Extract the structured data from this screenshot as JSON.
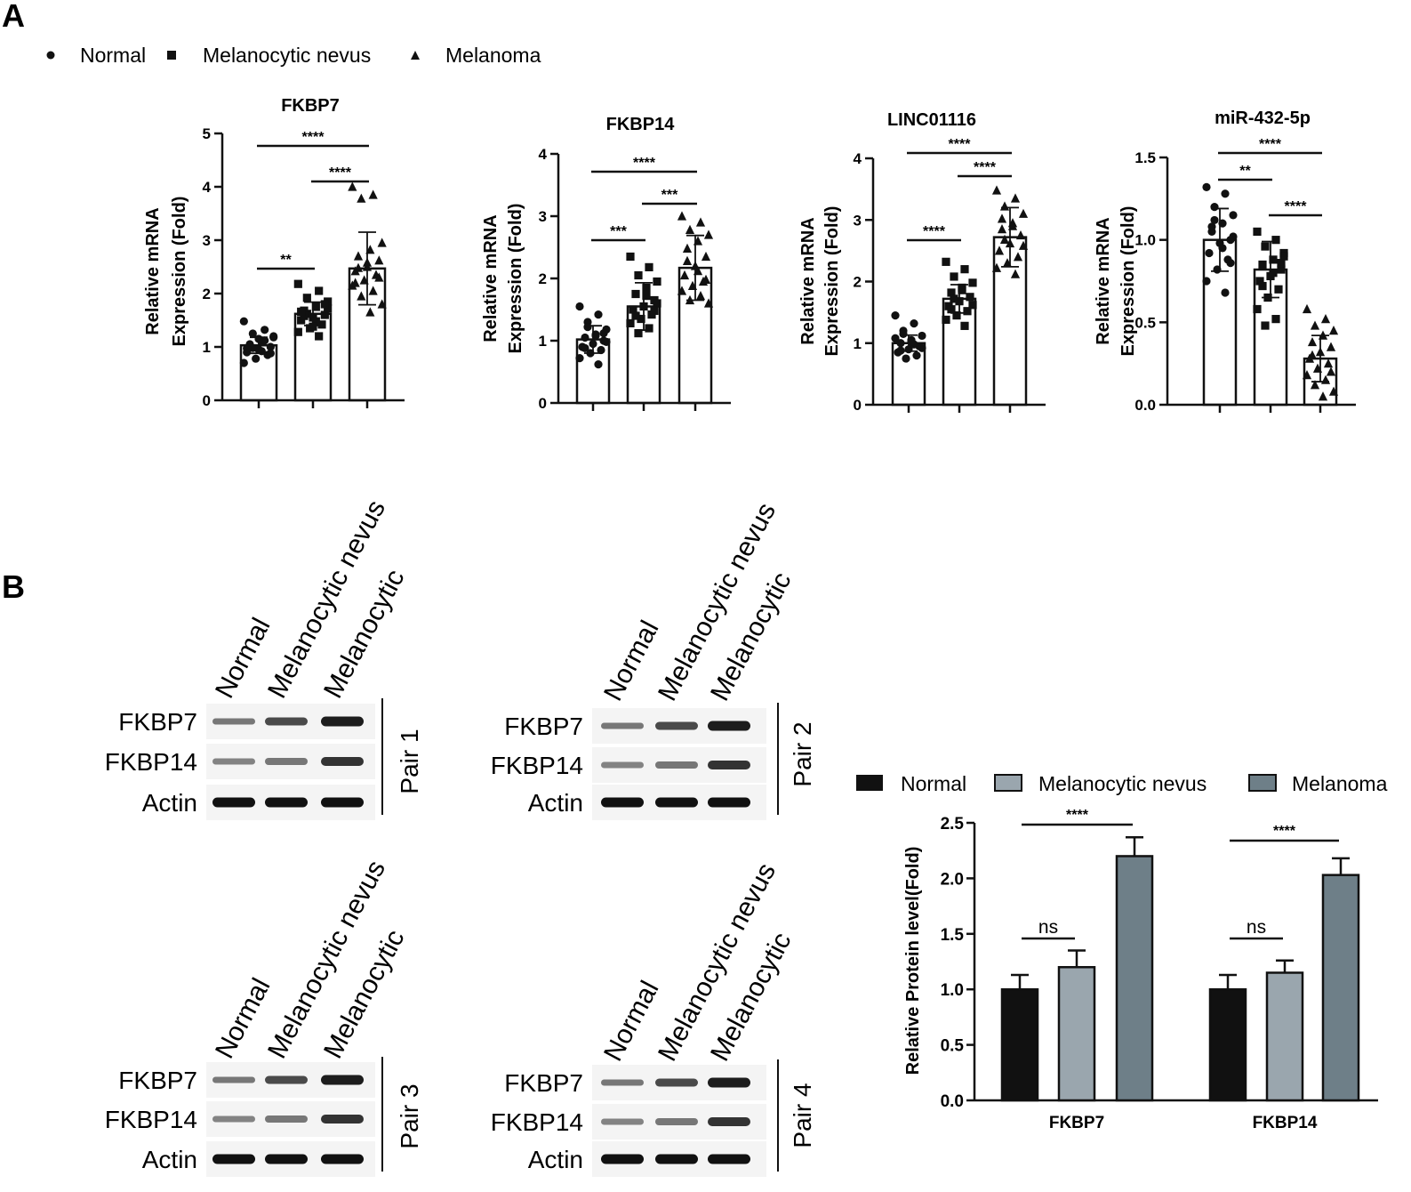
{
  "panels": {
    "a_label": "A",
    "b_label": "B"
  },
  "legend_a": {
    "items": [
      {
        "label": "Normal",
        "marker": "circle"
      },
      {
        "label": "Melanocytic nevus",
        "marker": "square"
      },
      {
        "label": "Melanoma",
        "marker": "triangle"
      }
    ]
  },
  "chart_data": [
    {
      "type": "bar",
      "title": "FKBP7",
      "ylabel": [
        "Relative mRNA",
        "Expression (Fold)"
      ],
      "categories": [
        "Normal",
        "Melanocytic nevus",
        "Melanoma"
      ],
      "values": [
        1.03,
        1.62,
        2.47
      ],
      "errors": [
        0.15,
        0.22,
        0.68
      ],
      "ylim": [
        0,
        5
      ],
      "yticks": [
        "0",
        "1",
        "2",
        "3",
        "4",
        "5"
      ],
      "points": [
        [
          1.48,
          1.32,
          1.25,
          1.18,
          1.1,
          1.05,
          1.0,
          0.95,
          0.9,
          0.85,
          0.78,
          0.7,
          1.12,
          0.98,
          1.2,
          0.92,
          1.03,
          0.88,
          1.15,
          0.97
        ],
        [
          2.18,
          2.05,
          1.92,
          1.85,
          1.75,
          1.68,
          1.6,
          1.55,
          1.5,
          1.42,
          1.35,
          1.28,
          1.2,
          1.62,
          1.72,
          1.48,
          1.58,
          1.8,
          1.38,
          1.66
        ],
        [
          4.0,
          3.85,
          3.78,
          2.95,
          2.82,
          2.7,
          2.62,
          2.5,
          2.42,
          2.35,
          2.25,
          2.15,
          2.05,
          1.95,
          1.8,
          1.65,
          2.48,
          2.3,
          2.58,
          2.2
        ]
      ],
      "comparisons": [
        {
          "from": 0,
          "to": 1,
          "label": "**"
        },
        {
          "from": 1,
          "to": 2,
          "label": "****"
        },
        {
          "from": 0,
          "to": 2,
          "label": "****"
        }
      ]
    },
    {
      "type": "bar",
      "title": "FKBP14",
      "ylabel": [
        "Relative mRNA",
        "Expression (Fold)"
      ],
      "categories": [
        "Normal",
        "Melanocytic nevus",
        "Melanoma"
      ],
      "values": [
        1.02,
        1.55,
        2.17
      ],
      "errors": [
        0.22,
        0.38,
        0.52
      ],
      "ylim": [
        0,
        4
      ],
      "yticks": [
        "0",
        "1",
        "2",
        "3",
        "4"
      ],
      "points": [
        [
          1.55,
          1.42,
          1.3,
          1.18,
          1.1,
          1.05,
          1.0,
          0.95,
          0.9,
          0.85,
          0.8,
          0.72,
          0.62,
          1.22,
          0.98,
          1.08,
          0.88,
          1.12
        ],
        [
          2.35,
          2.18,
          2.05,
          1.95,
          1.85,
          1.75,
          1.65,
          1.55,
          1.5,
          1.42,
          1.35,
          1.28,
          1.2,
          1.12,
          1.6,
          1.72,
          1.4,
          1.48
        ],
        [
          3.0,
          2.9,
          2.78,
          2.7,
          2.6,
          2.48,
          2.35,
          2.2,
          2.05,
          1.95,
          1.88,
          1.8,
          1.72,
          1.65,
          1.6,
          2.12,
          2.28,
          1.98
        ]
      ],
      "comparisons": [
        {
          "from": 0,
          "to": 1,
          "label": "***"
        },
        {
          "from": 1,
          "to": 2,
          "label": "***"
        },
        {
          "from": 0,
          "to": 2,
          "label": "****"
        }
      ]
    },
    {
      "type": "bar",
      "title": "LINC01116",
      "ylabel": [
        "Relative mRNA",
        "Expression (Fold)"
      ],
      "categories": [
        "Normal",
        "Melanocytic nevus",
        "Melanoma"
      ],
      "values": [
        1.0,
        1.72,
        2.72
      ],
      "errors": [
        0.13,
        0.23,
        0.48
      ],
      "ylim": [
        0,
        4
      ],
      "yticks": [
        "0",
        "1",
        "2",
        "3",
        "4"
      ],
      "points": [
        [
          1.45,
          1.32,
          1.2,
          1.12,
          1.05,
          1.0,
          0.95,
          0.9,
          0.85,
          0.8,
          0.75,
          1.08,
          0.98,
          1.15,
          0.92,
          1.02,
          0.88
        ],
        [
          2.32,
          2.2,
          2.08,
          1.98,
          1.9,
          1.82,
          1.75,
          1.68,
          1.6,
          1.52,
          1.45,
          1.38,
          1.28,
          1.72,
          1.62,
          1.86,
          1.55
        ],
        [
          3.48,
          3.35,
          3.22,
          3.1,
          2.95,
          2.85,
          2.75,
          2.62,
          2.5,
          2.4,
          2.3,
          2.22,
          2.12,
          2.68,
          2.58,
          2.9,
          3.02
        ]
      ],
      "comparisons": [
        {
          "from": 0,
          "to": 1,
          "label": "****"
        },
        {
          "from": 1,
          "to": 2,
          "label": "****"
        },
        {
          "from": 0,
          "to": 2,
          "label": "****"
        }
      ]
    },
    {
      "type": "bar",
      "title": "miR-432-5p",
      "ylabel": [
        "Relative mRNA",
        "Expression (Fold)"
      ],
      "categories": [
        "Normal",
        "Melanocytic nevus",
        "Melanoma"
      ],
      "values": [
        1.0,
        0.82,
        0.28
      ],
      "errors": [
        0.19,
        0.17,
        0.14
      ],
      "ylim": [
        0,
        1.5
      ],
      "yticks": [
        "0.0",
        "0.5",
        "1.0",
        "1.5"
      ],
      "points": [
        [
          1.32,
          1.28,
          1.2,
          1.15,
          1.1,
          1.05,
          1.0,
          0.98,
          0.92,
          0.88,
          0.82,
          0.75,
          0.68,
          1.12,
          1.02,
          0.95,
          1.08,
          0.86
        ],
        [
          1.05,
          1.0,
          0.96,
          0.92,
          0.88,
          0.85,
          0.82,
          0.78,
          0.75,
          0.7,
          0.65,
          0.58,
          0.52,
          0.48,
          0.9,
          0.8,
          0.72,
          0.86
        ],
        [
          0.58,
          0.52,
          0.48,
          0.45,
          0.42,
          0.38,
          0.35,
          0.32,
          0.28,
          0.25,
          0.22,
          0.18,
          0.15,
          0.12,
          0.08,
          0.05,
          0.3,
          0.2
        ]
      ],
      "comparisons": [
        {
          "from": 0,
          "to": 1,
          "label": "**"
        },
        {
          "from": 1,
          "to": 2,
          "label": "****"
        },
        {
          "from": 0,
          "to": 2,
          "label": "****"
        }
      ]
    },
    {
      "type": "bar",
      "title": "",
      "ylabel": "Relative Protein level(Fold)",
      "categories": [
        "FKBP7",
        "FKBP14"
      ],
      "series": [
        {
          "name": "Normal",
          "values": [
            1.0,
            1.0
          ],
          "errors": [
            0.13,
            0.13
          ],
          "color": "#111111"
        },
        {
          "name": "Melanocytic nevus",
          "values": [
            1.2,
            1.15
          ],
          "errors": [
            0.15,
            0.11
          ],
          "color": "#9aa6ae"
        },
        {
          "name": "Melanoma",
          "values": [
            2.2,
            2.03
          ],
          "errors": [
            0.17,
            0.15
          ],
          "color": "#6e7f88"
        }
      ],
      "ylim": [
        0,
        2.5
      ],
      "yticks": [
        "0.0",
        "0.5",
        "1.0",
        "1.5",
        "2.0",
        "2.5"
      ],
      "comparisons": [
        {
          "category": 0,
          "from": 0,
          "to": 1,
          "label": "ns"
        },
        {
          "category": 0,
          "from": 0,
          "to": 2,
          "label": "****"
        },
        {
          "category": 1,
          "from": 0,
          "to": 1,
          "label": "ns"
        },
        {
          "category": 1,
          "from": 0,
          "to": 2,
          "label": "****"
        }
      ]
    }
  ],
  "western_blots": [
    {
      "pair": "Pair 1",
      "lanes": [
        "Normal",
        "Melanocytic nevus",
        "Melanocytic"
      ],
      "rows": [
        "FKBP7",
        "FKBP14",
        "Actin"
      ]
    },
    {
      "pair": "Pair 2",
      "lanes": [
        "Normal",
        "Melanocytic nevus",
        "Melanocytic"
      ],
      "rows": [
        "FKBP7",
        "FKBP14",
        "Actin"
      ]
    },
    {
      "pair": "Pair 3",
      "lanes": [
        "Normal",
        "Melanocytic nevus",
        "Melanocytic"
      ],
      "rows": [
        "FKBP7",
        "FKBP14",
        "Actin"
      ]
    },
    {
      "pair": "Pair 4",
      "lanes": [
        "Normal",
        "Melanocytic nevus",
        "Melanocytic"
      ],
      "rows": [
        "FKBP7",
        "FKBP14",
        "Actin"
      ]
    }
  ]
}
